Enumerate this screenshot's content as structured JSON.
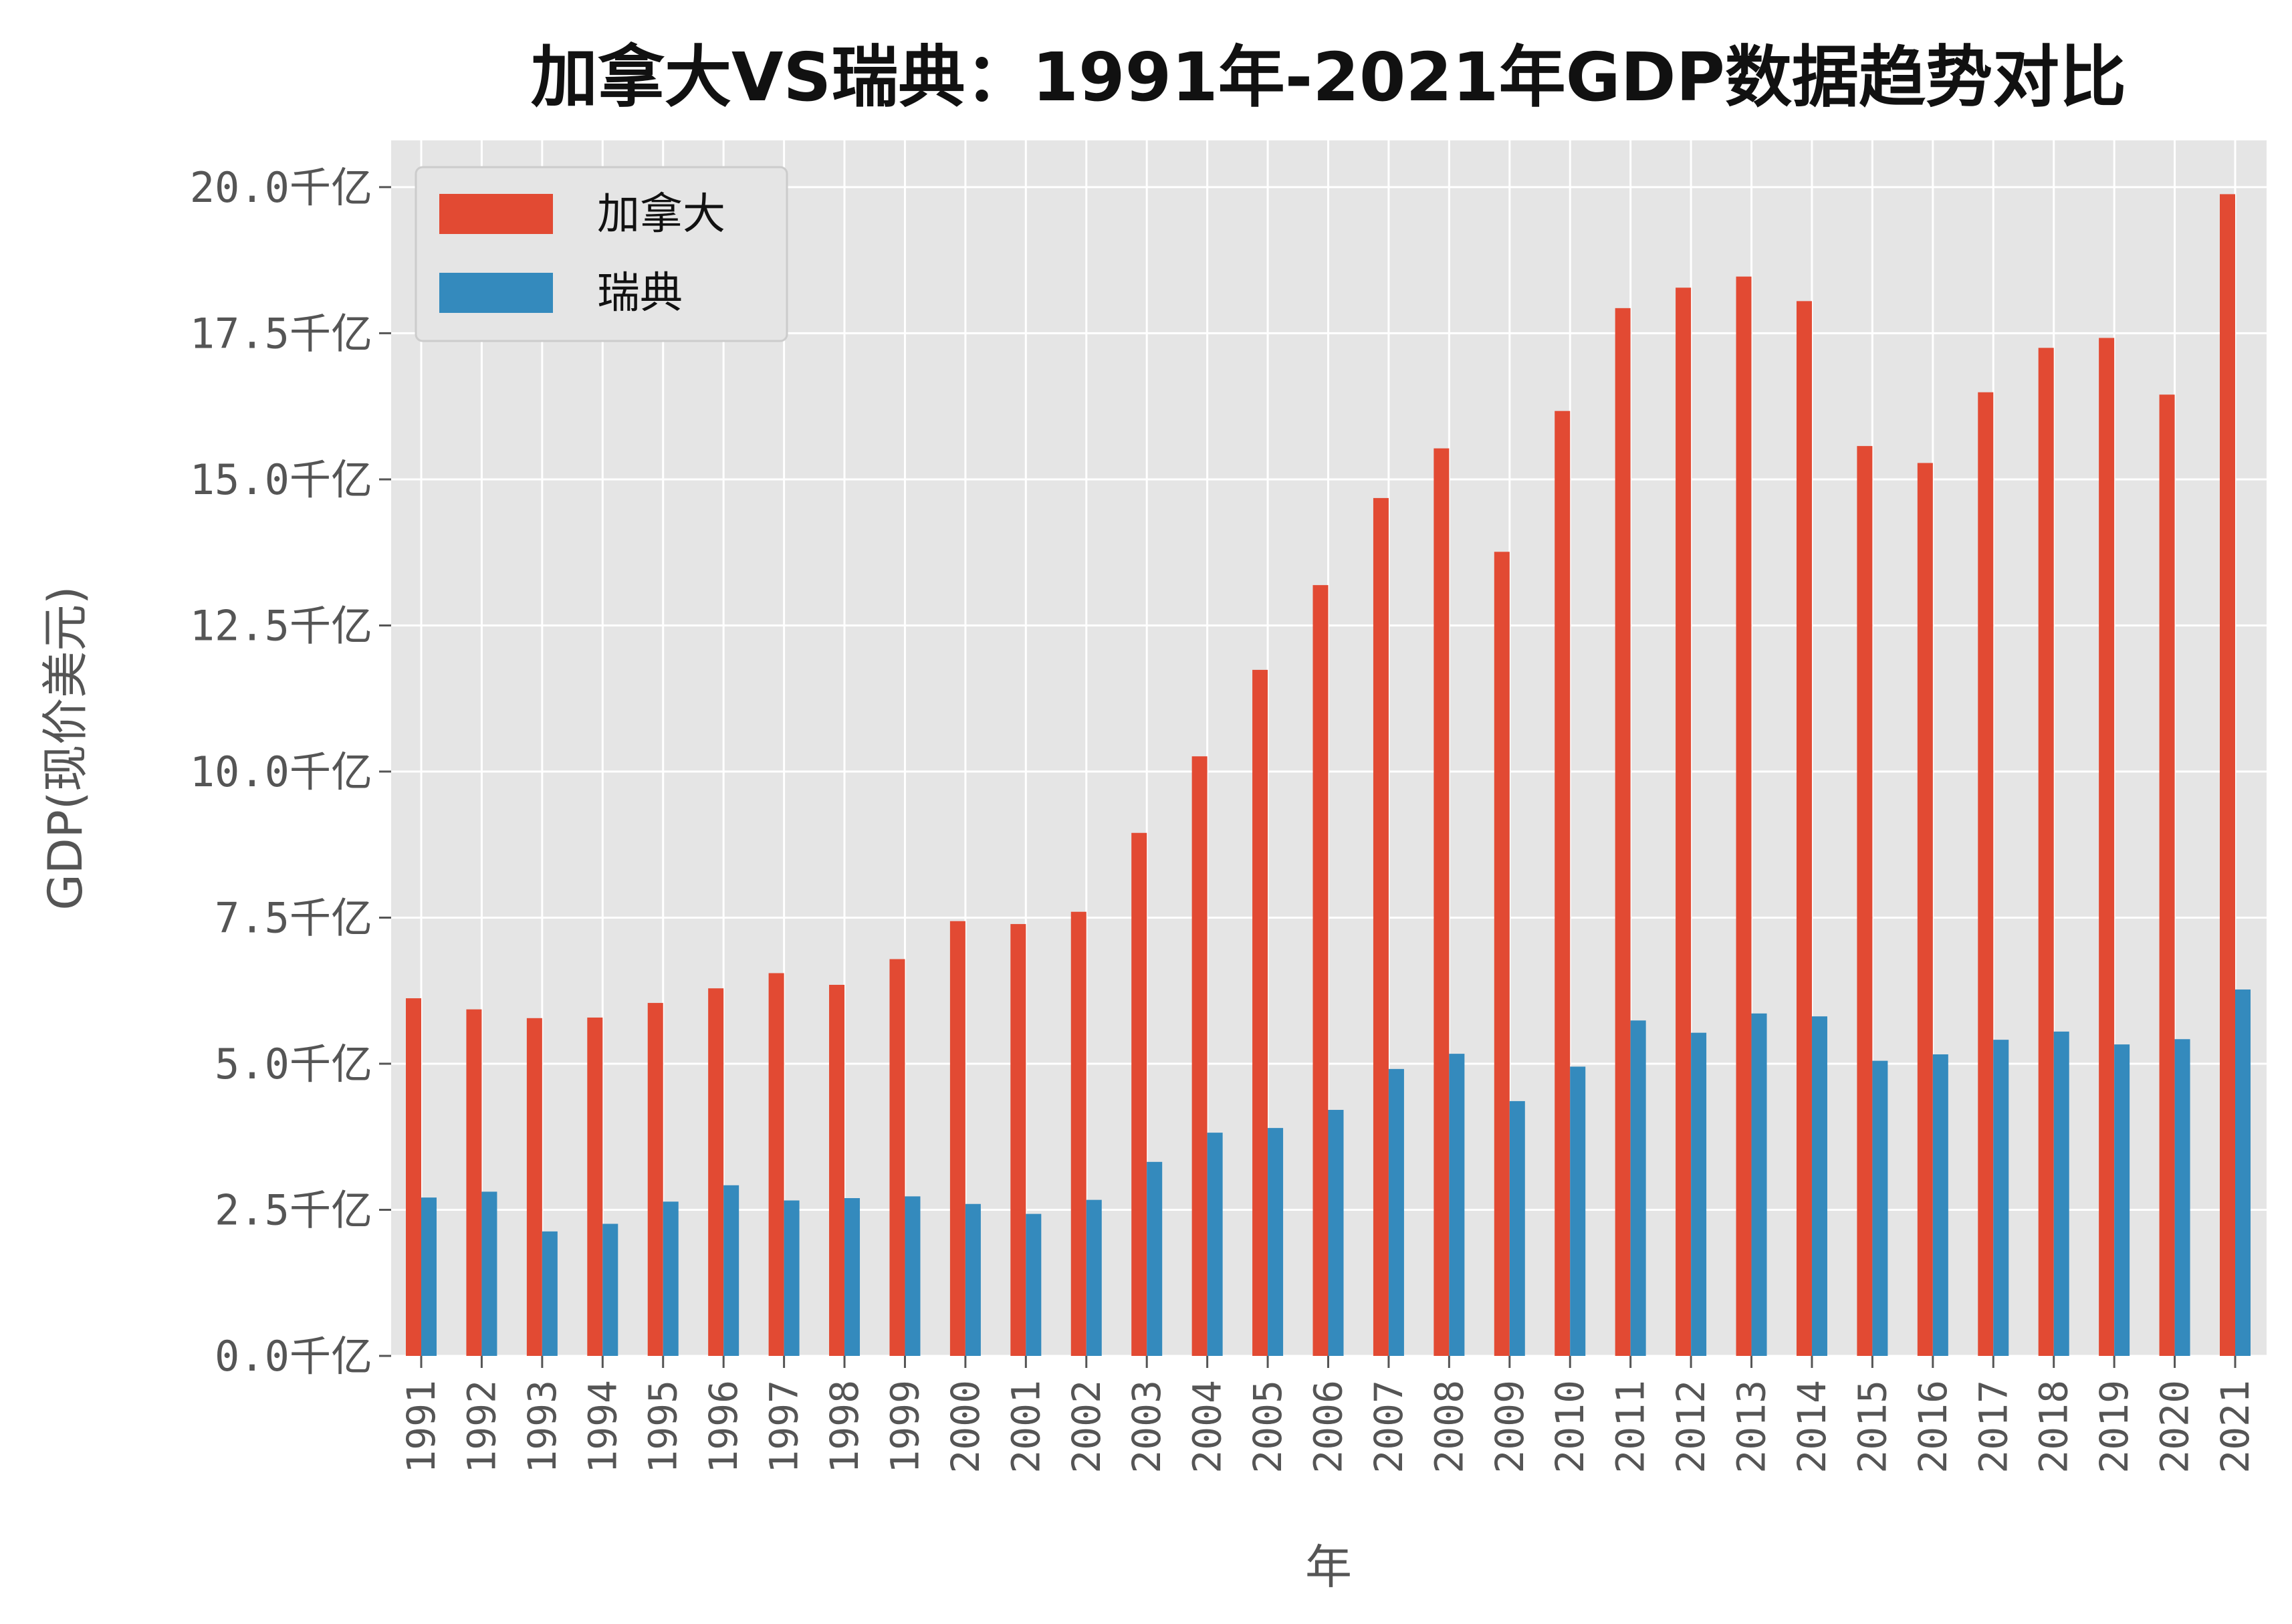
{
  "chart_data": {
    "type": "bar",
    "title": "加拿大VS瑞典：1991年-2021年GDP数据趋势对比",
    "xlabel": "年",
    "ylabel": "GDP(现价美元)",
    "ylim": [
      0,
      20.8
    ],
    "ytick_values": [
      0,
      2.5,
      5,
      7.5,
      10,
      12.5,
      15,
      17.5,
      20
    ],
    "ytick_labels": [
      "0.0千亿",
      "2.5千亿",
      "5.0千亿",
      "7.5千亿",
      "10.0千亿",
      "12.5千亿",
      "15.0千亿",
      "17.5千亿",
      "20.0千亿"
    ],
    "categories": [
      "1991",
      "1992",
      "1993",
      "1994",
      "1995",
      "1996",
      "1997",
      "1998",
      "1999",
      "2000",
      "2001",
      "2002",
      "2003",
      "2004",
      "2005",
      "2006",
      "2007",
      "2008",
      "2009",
      "2010",
      "2011",
      "2012",
      "2013",
      "2014",
      "2015",
      "2016",
      "2017",
      "2018",
      "2019",
      "2020",
      "2021"
    ],
    "series": [
      {
        "name": "加拿大",
        "color": "#E24A33",
        "values": [
          6.12,
          5.93,
          5.78,
          5.79,
          6.04,
          6.29,
          6.55,
          6.35,
          6.79,
          7.44,
          7.39,
          7.6,
          8.95,
          10.26,
          11.74,
          13.19,
          14.68,
          15.53,
          13.76,
          16.17,
          17.93,
          18.28,
          18.47,
          18.05,
          15.57,
          15.28,
          16.49,
          17.25,
          17.42,
          16.45,
          19.88
        ]
      },
      {
        "name": "瑞典",
        "color": "#348ABD",
        "values": [
          2.71,
          2.81,
          2.13,
          2.26,
          2.64,
          2.92,
          2.66,
          2.7,
          2.73,
          2.6,
          2.43,
          2.67,
          3.32,
          3.82,
          3.9,
          4.21,
          4.91,
          5.17,
          4.36,
          4.95,
          5.74,
          5.53,
          5.86,
          5.81,
          5.05,
          5.16,
          5.41,
          5.55,
          5.33,
          5.42,
          6.27
        ]
      }
    ],
    "grid": true,
    "legend_position": "top-left"
  }
}
